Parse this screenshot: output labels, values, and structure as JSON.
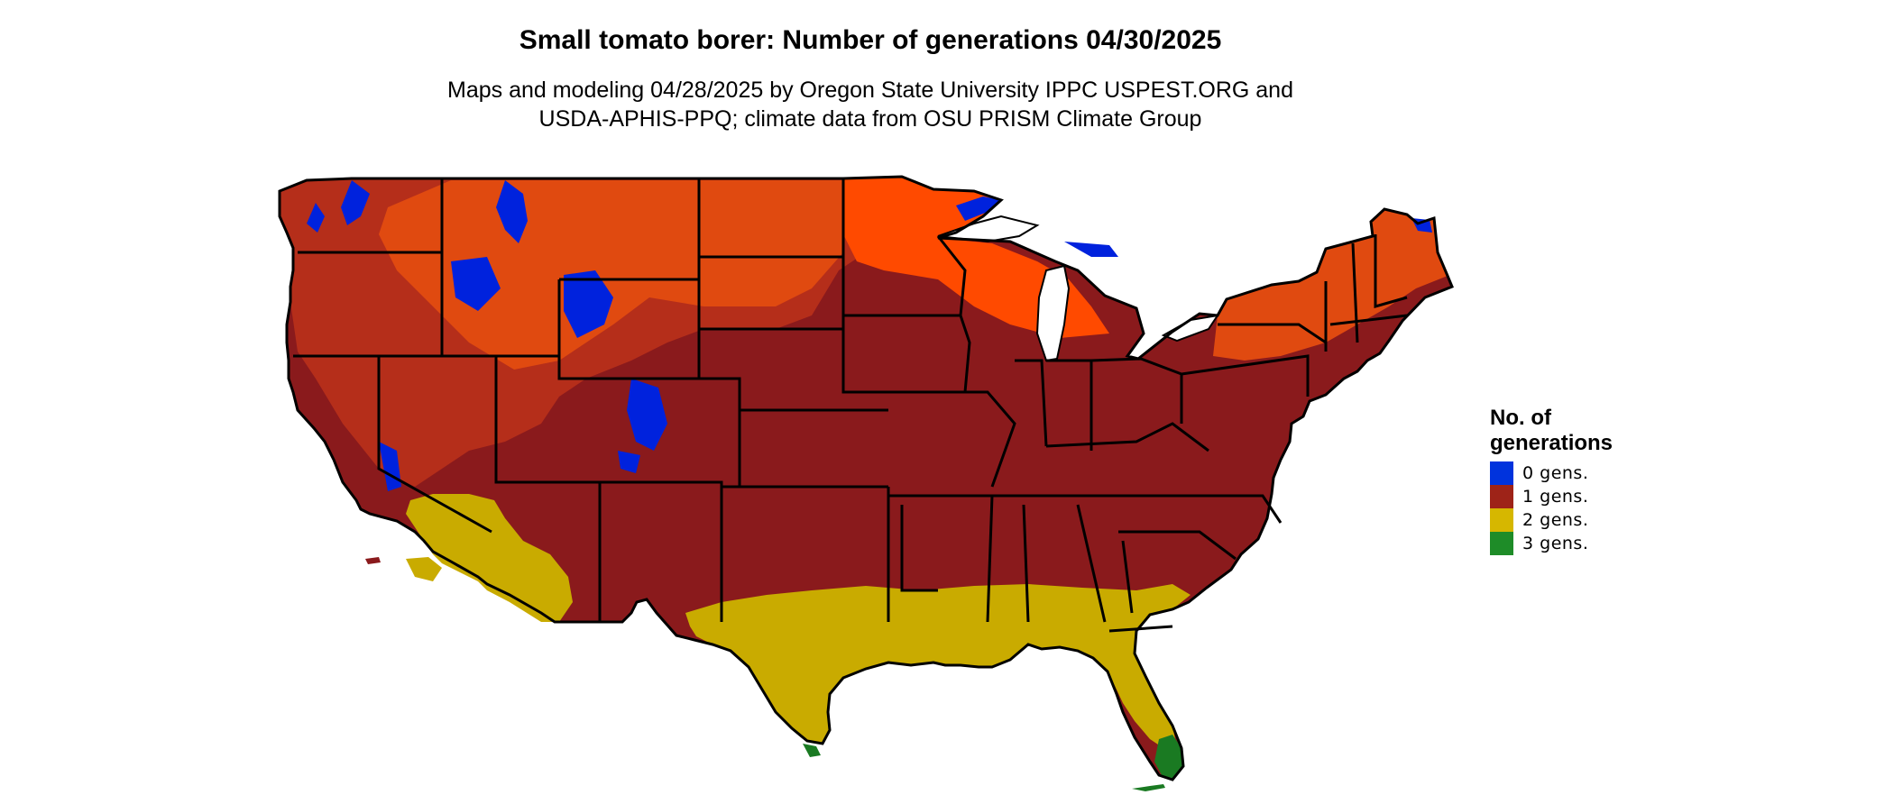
{
  "title": "Small tomato borer: Number of generations 04/30/2025",
  "subtitle_line1": "Maps and modeling 04/28/2025 by Oregon State University IPPC USPEST.ORG and",
  "subtitle_line2": "USDA-APHIS-PPQ; climate data from OSU PRISM Climate Group",
  "legend": {
    "title_line1": "No. of",
    "title_line2": "generations",
    "items": [
      {
        "label": "0 gens.",
        "color": "#0033dd"
      },
      {
        "label": "1 gens.",
        "color": "#9e2318"
      },
      {
        "label": "2 gens.",
        "color": "#d6b700"
      },
      {
        "label": "3 gens.",
        "color": "#1e8c28"
      }
    ]
  },
  "colors": {
    "one_gen_dark": "#8a1a1c",
    "one_gen_mid": "#b52e1a",
    "one_gen_light": "#e04a10",
    "one_gen_bright": "#ff4a00",
    "two_gen": "#c9ab00",
    "two_gen_light": "#e6cf00",
    "three_gen": "#1a7a22",
    "zero_gen": "#0022dd",
    "border": "#000000"
  }
}
